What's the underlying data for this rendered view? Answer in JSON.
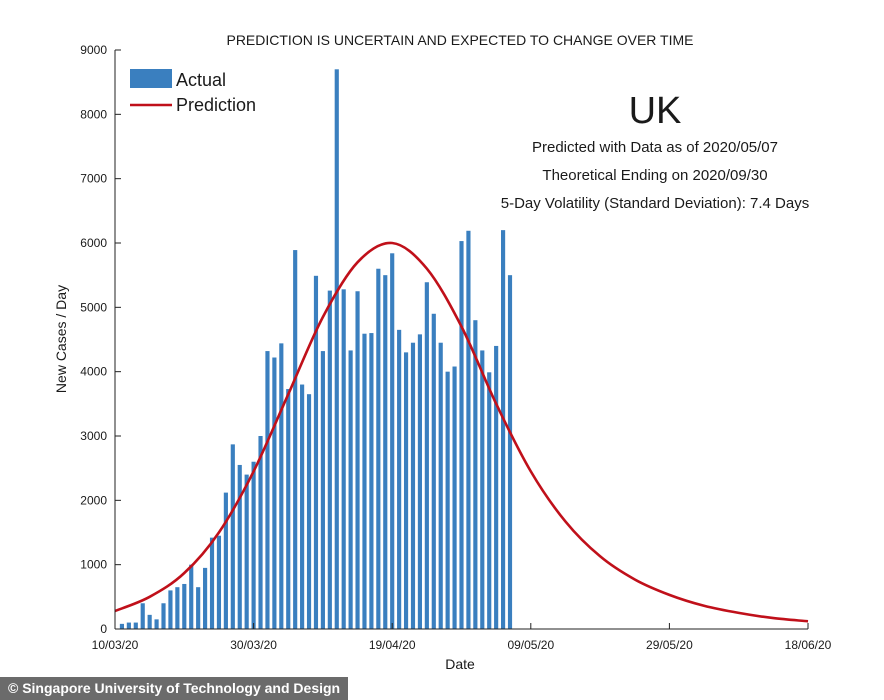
{
  "credit": "© Singapore University of Technology and Design",
  "chart_data": {
    "type": "bar",
    "title": "PREDICTION IS UNCERTAIN AND EXPECTED TO CHANGE OVER TIME",
    "country": "UK",
    "notes": [
      "Predicted with Data as of 2020/05/07",
      "Theoretical Ending on 2020/09/30",
      "5-Day Volatility (Standard Deviation): 7.4 Days"
    ],
    "xlabel": "Date",
    "ylabel": "New Cases / Day",
    "xlim": [
      "2020-03-10",
      "2020-06-18"
    ],
    "ylim": [
      0,
      9000
    ],
    "x_ticks": [
      "10/03/20",
      "30/03/20",
      "19/04/20",
      "09/05/20",
      "29/05/20",
      "18/06/20"
    ],
    "y_ticks": [
      0,
      1000,
      2000,
      3000,
      4000,
      5000,
      6000,
      7000,
      8000,
      9000
    ],
    "legend": {
      "position": "top-left",
      "entries": [
        "Actual",
        "Prediction"
      ]
    },
    "colors": {
      "actual": "#3a7fbf",
      "prediction": "#c0101a"
    },
    "series": [
      {
        "name": "Actual",
        "kind": "bar",
        "x": [
          "2020-03-11",
          "2020-03-12",
          "2020-03-13",
          "2020-03-14",
          "2020-03-15",
          "2020-03-16",
          "2020-03-17",
          "2020-03-18",
          "2020-03-19",
          "2020-03-20",
          "2020-03-21",
          "2020-03-22",
          "2020-03-23",
          "2020-03-24",
          "2020-03-25",
          "2020-03-26",
          "2020-03-27",
          "2020-03-28",
          "2020-03-29",
          "2020-03-30",
          "2020-03-31",
          "2020-04-01",
          "2020-04-02",
          "2020-04-03",
          "2020-04-04",
          "2020-04-05",
          "2020-04-06",
          "2020-04-07",
          "2020-04-08",
          "2020-04-09",
          "2020-04-10",
          "2020-04-11",
          "2020-04-12",
          "2020-04-13",
          "2020-04-14",
          "2020-04-15",
          "2020-04-16",
          "2020-04-17",
          "2020-04-18",
          "2020-04-19",
          "2020-04-20",
          "2020-04-21",
          "2020-04-22",
          "2020-04-23",
          "2020-04-24",
          "2020-04-25",
          "2020-04-26",
          "2020-04-27",
          "2020-04-28",
          "2020-04-29",
          "2020-04-30",
          "2020-05-01",
          "2020-05-02",
          "2020-05-03",
          "2020-05-04",
          "2020-05-05",
          "2020-05-06",
          "2020-05-07"
        ],
        "values": [
          80,
          100,
          100,
          400,
          220,
          150,
          400,
          600,
          650,
          700,
          1000,
          650,
          950,
          1420,
          1450,
          2120,
          2870,
          2550,
          2400,
          2600,
          3000,
          4320,
          4220,
          4440,
          3730,
          5890,
          3800,
          3650,
          5490,
          4320,
          5260,
          8700,
          5280,
          4330,
          5250,
          4590,
          4600,
          5600,
          5500,
          5840,
          4650,
          4300,
          4450,
          4580,
          5390,
          4900,
          4450,
          4000,
          4080,
          6030,
          6190,
          4800,
          4330,
          3990,
          4400,
          6200,
          5500,
          0
        ]
      },
      {
        "name": "Prediction",
        "kind": "line",
        "x": [
          "2020-03-10",
          "2020-03-15",
          "2020-03-20",
          "2020-03-25",
          "2020-03-30",
          "2020-04-04",
          "2020-04-09",
          "2020-04-14",
          "2020-04-19",
          "2020-04-24",
          "2020-04-29",
          "2020-05-04",
          "2020-05-09",
          "2020-05-14",
          "2020-05-19",
          "2020-05-24",
          "2020-05-29",
          "2020-06-03",
          "2020-06-08",
          "2020-06-13",
          "2020-06-18"
        ],
        "values": [
          280,
          500,
          870,
          1500,
          2450,
          3650,
          4850,
          5700,
          6000,
          5600,
          4700,
          3500,
          2450,
          1670,
          1130,
          770,
          530,
          360,
          250,
          170,
          120
        ]
      }
    ]
  }
}
